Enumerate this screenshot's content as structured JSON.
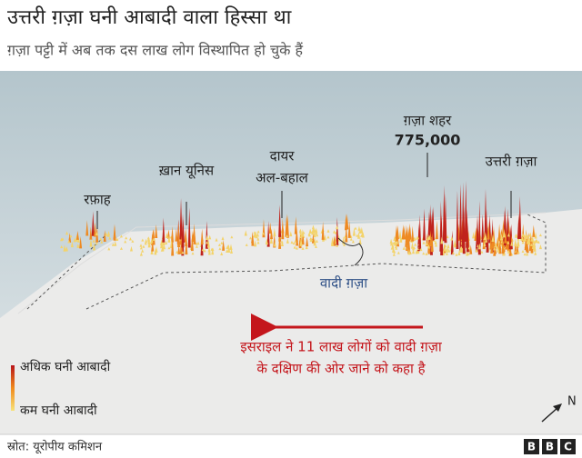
{
  "header": {
    "title": "उत्तरी ग़ज़ा घनी आबादी वाला हिस्सा था",
    "subtitle": "ग़ज़ा पट्टी में अब तक दस लाख लोग विस्थापित हो चुके हैं"
  },
  "places": {
    "rafah": "रफ़ाह",
    "khan_younis": "ख़ान यूनिस",
    "deir_1": "दायर",
    "deir_2": "अल-बहाल",
    "gaza_city": "ग़ज़ा शहर",
    "gaza_city_population": "775,000",
    "north_gaza": "उत्तरी ग़ज़ा",
    "wadi_gaza": "वादी ग़ज़ा"
  },
  "annotation": [
    "इसराइल ने 11 लाख लोगों को वादी ग़ज़ा",
    "के दक्षिण की ओर जाने को कहा है"
  ],
  "legend": {
    "high": "अधिक घनी आबादी",
    "low": "कम घनी आबादी"
  },
  "compass": "N",
  "footer": {
    "source": "स्रोत: यूरोपीय कमिशन",
    "logo": [
      "B",
      "B",
      "C"
    ]
  }
}
